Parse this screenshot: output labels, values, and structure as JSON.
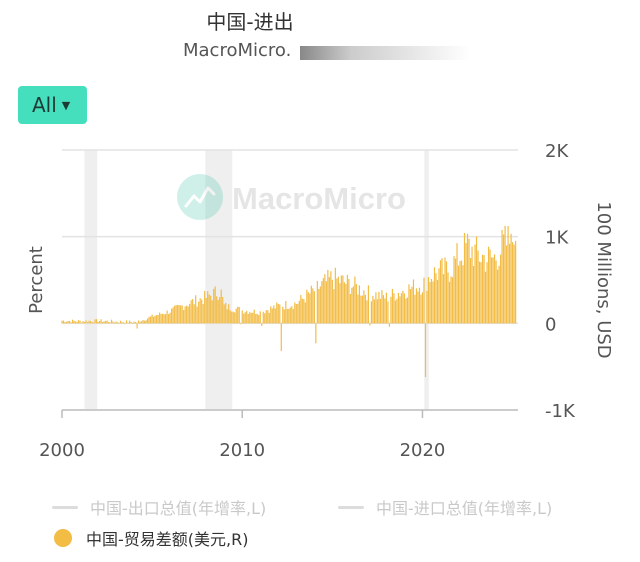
{
  "header": {
    "title": "中国-进出",
    "subtitle": "MacroMicro."
  },
  "range_selector": {
    "label": "All"
  },
  "watermark": {
    "text": "MacroMicro"
  },
  "chart_data": {
    "type": "bar",
    "left_axis_label": "Percent",
    "right_axis_label": "100 Millions, USD",
    "x_ticks": [
      "2000",
      "2010",
      "2020"
    ],
    "y_ticks_right": [
      "2K",
      "1K",
      "0",
      "-1K"
    ],
    "ylim_right": [
      -1000,
      2000
    ],
    "xlim": [
      2000,
      2025.3
    ],
    "grid": "horizontal",
    "recessions": [
      [
        2001.25,
        2001.95
      ],
      [
        2007.95,
        2009.45
      ],
      [
        2020.1,
        2020.35
      ]
    ],
    "bar_color": "#f2bc45",
    "series": [
      {
        "name": "中国-出口总值(年增率,L)",
        "visible": false,
        "color": "#dcdcdc"
      },
      {
        "name": "中国-进口总值(年增率,L)",
        "visible": false,
        "color": "#dcdcdc"
      },
      {
        "name": "中国-贸易差额(美元,R)",
        "visible": true,
        "color": "#f2bc45",
        "anchors": [
          [
            2000.0,
            30
          ],
          [
            2001.0,
            25
          ],
          [
            2002.0,
            30
          ],
          [
            2003.0,
            20
          ],
          [
            2004.0,
            15
          ],
          [
            2004.5,
            40
          ],
          [
            2005.0,
            80
          ],
          [
            2006.0,
            140
          ],
          [
            2007.0,
            230
          ],
          [
            2008.0,
            300
          ],
          [
            2008.8,
            380
          ],
          [
            2009.0,
            200
          ],
          [
            2010.0,
            150
          ],
          [
            2011.0,
            130
          ],
          [
            2012.0,
            200
          ],
          [
            2013.0,
            230
          ],
          [
            2014.0,
            380
          ],
          [
            2015.0,
            520
          ],
          [
            2016.0,
            450
          ],
          [
            2017.0,
            350
          ],
          [
            2018.0,
            300
          ],
          [
            2019.0,
            380
          ],
          [
            2020.0,
            450
          ],
          [
            2020.5,
            560
          ],
          [
            2021.0,
            600
          ],
          [
            2021.5,
            620
          ],
          [
            2022.0,
            760
          ],
          [
            2022.5,
            890
          ],
          [
            2023.0,
            800
          ],
          [
            2023.5,
            750
          ],
          [
            2024.0,
            750
          ],
          [
            2024.5,
            900
          ],
          [
            2025.2,
            1000
          ]
        ],
        "dips": [
          [
            2004.2,
            -60
          ],
          [
            2009.9,
            -10
          ],
          [
            2011.1,
            -30
          ],
          [
            2012.2,
            -320
          ],
          [
            2014.1,
            -230
          ],
          [
            2017.1,
            -25
          ],
          [
            2018.2,
            -40
          ],
          [
            2020.15,
            -620
          ]
        ]
      }
    ]
  }
}
